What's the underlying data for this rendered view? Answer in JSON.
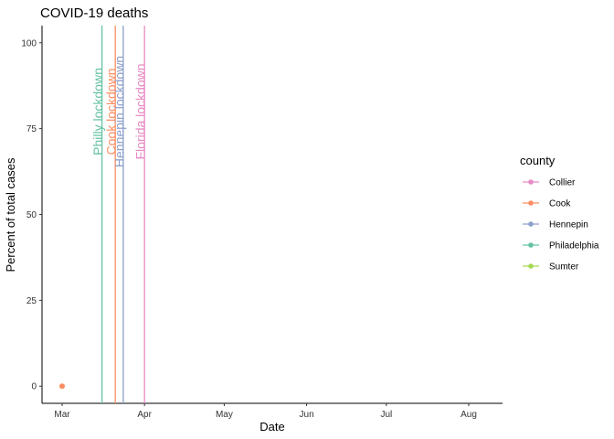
{
  "chart_data": {
    "type": "line",
    "title": "COVID-19 deaths",
    "xlabel": "Date",
    "ylabel": "Percent of total cases",
    "x_ticks": [
      "Mar",
      "Apr",
      "May",
      "Jun",
      "Jul",
      "Aug"
    ],
    "y_ticks": [
      0,
      25,
      50,
      75,
      100
    ],
    "ylim": [
      -5,
      105
    ],
    "grid": false,
    "legend": {
      "title": "county",
      "placement": "right",
      "entries": [
        {
          "name": "Collier",
          "color": "#E78AC3"
        },
        {
          "name": "Cook",
          "color": "#FC8D62"
        },
        {
          "name": "Hennepin",
          "color": "#8DA0CB"
        },
        {
          "name": "Philadelphia",
          "color": "#66C2A5"
        },
        {
          "name": "Sumter",
          "color": "#A6D854"
        }
      ]
    },
    "points": [
      {
        "series": "Cook",
        "x": "Mar 1",
        "y": 0
      }
    ],
    "annotations": [
      {
        "label": "Philly lockdown",
        "x": "Mar 16",
        "color": "#66C2A5"
      },
      {
        "label": "Cook lockdown",
        "x": "Mar 21",
        "color": "#FC8D62"
      },
      {
        "label": "Hennepin lockdown",
        "x": "Mar 24",
        "color": "#8DA0CB"
      },
      {
        "label": "Florida lockdown",
        "x": "Apr 1",
        "color": "#E78AC3"
      }
    ]
  }
}
